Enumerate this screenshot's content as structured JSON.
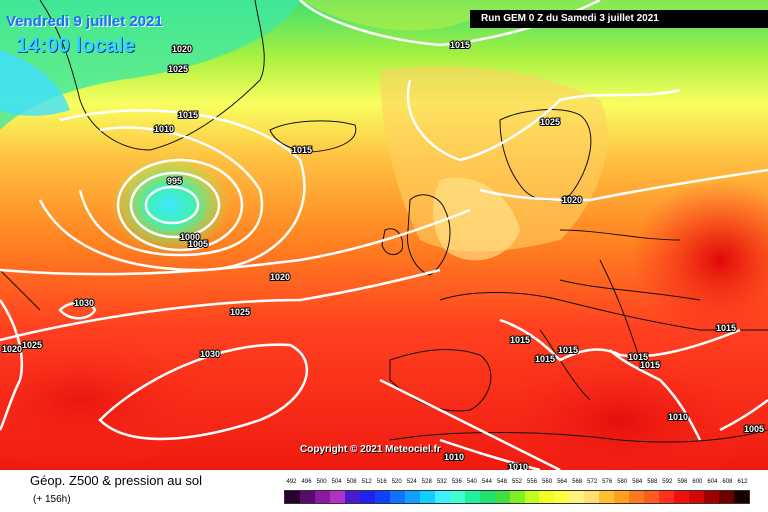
{
  "header": {
    "date": "Vendredi 9 juillet 2021",
    "time": "14:00 locale",
    "run": "Run GEM 0 Z du Samedi 3 juillet 2021"
  },
  "copyright": "Copyright © 2021 Meteociel.fr",
  "footer": {
    "title": "Géop. Z500 & pression au sol",
    "subtitle": "(+ 156h)"
  },
  "scale": {
    "labels": [
      "492",
      "496",
      "500",
      "504",
      "508",
      "512",
      "516",
      "520",
      "524",
      "528",
      "532",
      "536",
      "540",
      "544",
      "548",
      "552",
      "556",
      "560",
      "564",
      "568",
      "572",
      "576",
      "580",
      "584",
      "588",
      "592",
      "596",
      "600",
      "604",
      "608",
      "612"
    ],
    "colors": [
      "#2a0030",
      "#5a0a6a",
      "#8a1aa0",
      "#b030c8",
      "#4a1ad0",
      "#2020f0",
      "#1040ff",
      "#1070ff",
      "#10a0ff",
      "#10d0ff",
      "#40f0ff",
      "#40ffd0",
      "#20f0a0",
      "#20e070",
      "#40e040",
      "#80f020",
      "#c0ff20",
      "#f0ff20",
      "#ffff40",
      "#fff080",
      "#ffe070",
      "#ffc030",
      "#ffa020",
      "#ff7820",
      "#ff5a20",
      "#ff3020",
      "#f01010",
      "#d00808",
      "#a00000",
      "#700000",
      "#180000"
    ]
  },
  "isobars": [
    {
      "text": "1020"
    },
    {
      "text": "1025"
    },
    {
      "text": "1015"
    },
    {
      "text": "1010"
    },
    {
      "text": "995"
    },
    {
      "text": "1000"
    },
    {
      "text": "1005"
    },
    {
      "text": "1015"
    },
    {
      "text": "1015"
    },
    {
      "text": "1025"
    },
    {
      "text": "1020"
    },
    {
      "text": "1020"
    },
    {
      "text": "1030"
    },
    {
      "text": "1025"
    },
    {
      "text": "1020"
    },
    {
      "text": "1025"
    },
    {
      "text": "1030"
    },
    {
      "text": "1015"
    },
    {
      "text": "1015"
    },
    {
      "text": "1015"
    },
    {
      "text": "1015"
    },
    {
      "text": "1015"
    },
    {
      "text": "1015"
    },
    {
      "text": "1010"
    },
    {
      "text": "1010"
    },
    {
      "text": "1010"
    },
    {
      "text": "1005"
    }
  ]
}
